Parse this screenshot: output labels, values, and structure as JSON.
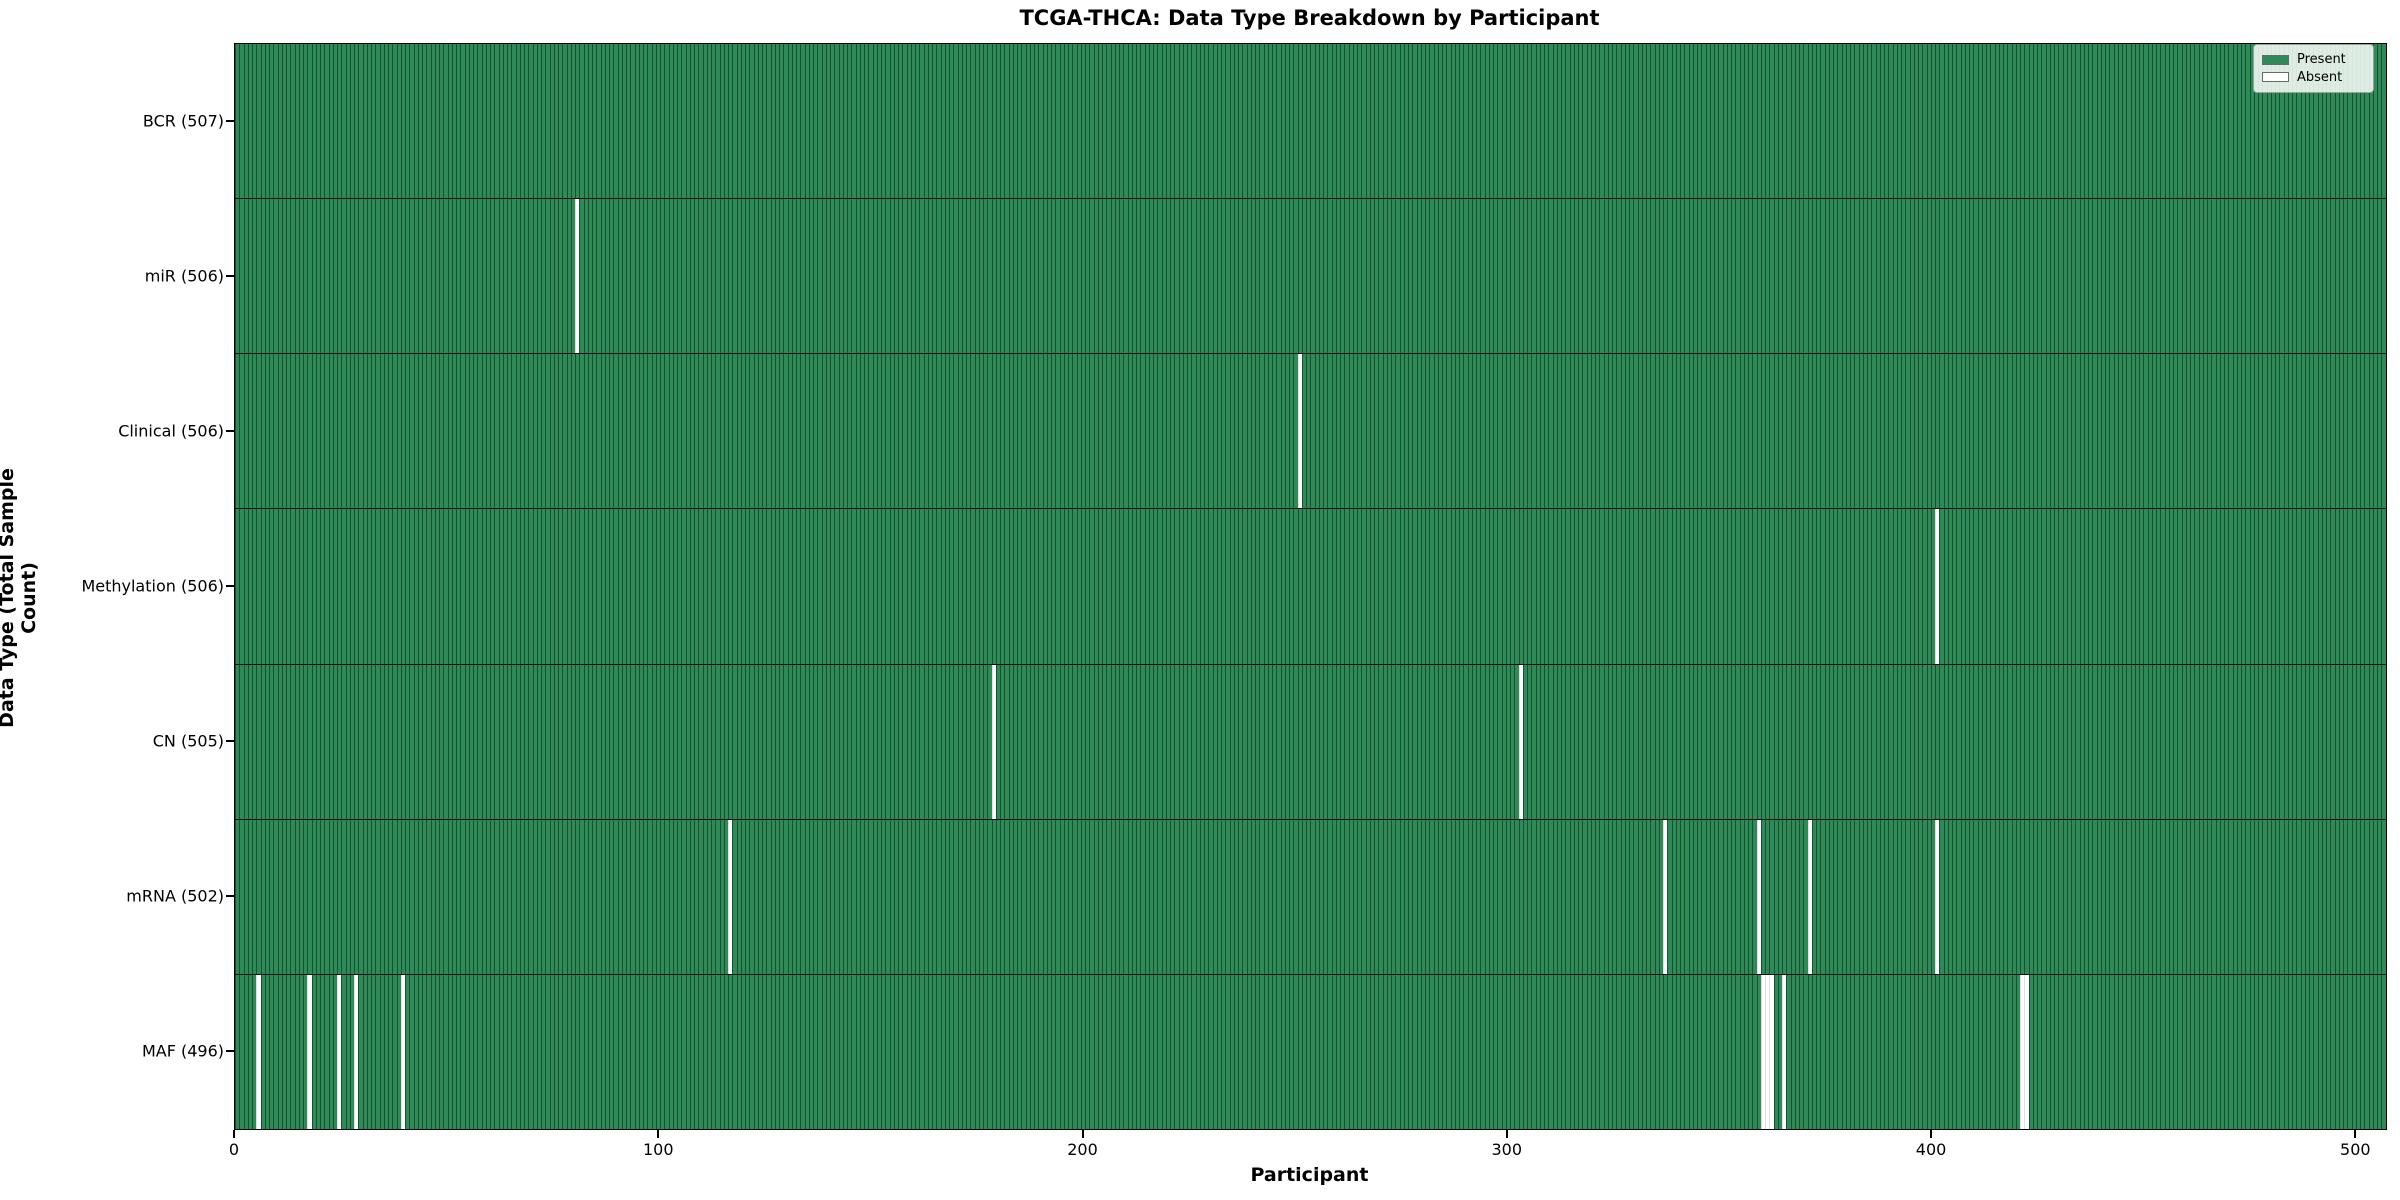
{
  "title": "TCGA-THCA: Data Type Breakdown by Participant",
  "chart_data": {
    "type": "heatmap",
    "title": "TCGA-THCA: Data Type Breakdown by Participant",
    "xlabel": "Participant",
    "ylabel": "Data Type (Total Sample Count)",
    "x_ticks": [
      0,
      100,
      200,
      300,
      400,
      500
    ],
    "xlim": [
      0,
      507
    ],
    "total_participants": 507,
    "grid": false,
    "colors": {
      "present": "#2e8b57",
      "absent": "#ffffff",
      "bar_edge": "rgba(0,0,0,0.42)",
      "row_divider": "#101010"
    },
    "rows": [
      {
        "name": "BCR",
        "label": "BCR (507)",
        "count": 507,
        "absent_participants": []
      },
      {
        "name": "miR",
        "label": "miR (506)",
        "count": 506,
        "absent_participants": [
          80
        ]
      },
      {
        "name": "Clinical",
        "label": "Clinical (506)",
        "count": 506,
        "absent_participants": [
          250
        ]
      },
      {
        "name": "Methylation",
        "label": "Methylation (506)",
        "count": 506,
        "absent_participants": [
          400
        ]
      },
      {
        "name": "CN",
        "label": "CN (505)",
        "count": 505,
        "absent_participants": [
          178,
          302
        ]
      },
      {
        "name": "mRNA",
        "label": "mRNA (502)",
        "count": 502,
        "absent_participants": [
          116,
          336,
          358,
          370,
          400
        ]
      },
      {
        "name": "MAF",
        "label": "MAF (496)",
        "count": 496,
        "absent_participants": [
          5,
          17,
          24,
          28,
          39,
          359,
          360,
          361,
          364,
          420,
          421
        ]
      }
    ],
    "legend": {
      "position": "upper right",
      "entries": [
        {
          "label": "Present",
          "color": "#2e8b57"
        },
        {
          "label": "Absent",
          "color": "#ffffff"
        }
      ]
    }
  }
}
